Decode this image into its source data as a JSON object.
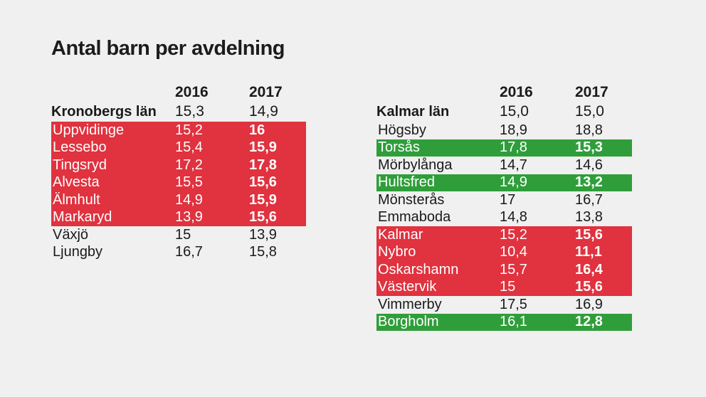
{
  "title": "Antal barn per avdelning",
  "colors": {
    "increase": "#e0323f",
    "decrease": "#2f9e3a",
    "background": "#f0f0f0"
  },
  "chart_data": [
    {
      "type": "table",
      "columns": [
        "2016",
        "2017"
      ],
      "region": {
        "name": "Kronobergs län",
        "v2016": "15,3",
        "v2017": "14,9"
      },
      "rows": [
        {
          "name": "Uppvidinge",
          "v2016": "15,2",
          "v2017": "16",
          "highlight": "red"
        },
        {
          "name": "Lessebo",
          "v2016": "15,4",
          "v2017": "15,9",
          "highlight": "red"
        },
        {
          "name": "Tingsryd",
          "v2016": "17,2",
          "v2017": "17,8",
          "highlight": "red"
        },
        {
          "name": "Alvesta",
          "v2016": "15,5",
          "v2017": "15,6",
          "highlight": "red"
        },
        {
          "name": "Älmhult",
          "v2016": "14,9",
          "v2017": "15,9",
          "highlight": "red"
        },
        {
          "name": "Markaryd",
          "v2016": "13,9",
          "v2017": "15,6",
          "highlight": "red"
        },
        {
          "name": "Växjö",
          "v2016": "15",
          "v2017": "13,9",
          "highlight": "none"
        },
        {
          "name": "Ljungby",
          "v2016": "16,7",
          "v2017": "15,8",
          "highlight": "none"
        }
      ]
    },
    {
      "type": "table",
      "columns": [
        "2016",
        "2017"
      ],
      "region": {
        "name": "Kalmar län",
        "v2016": "15,0",
        "v2017": "15,0"
      },
      "rows": [
        {
          "name": "Högsby",
          "v2016": "18,9",
          "v2017": "18,8",
          "highlight": "none"
        },
        {
          "name": "Torsås",
          "v2016": "17,8",
          "v2017": "15,3",
          "highlight": "green"
        },
        {
          "name": "Mörbylånga",
          "v2016": "14,7",
          "v2017": "14,6",
          "highlight": "none"
        },
        {
          "name": "Hultsfred",
          "v2016": "14,9",
          "v2017": "13,2",
          "highlight": "green"
        },
        {
          "name": "Mönsterås",
          "v2016": "17",
          "v2017": "16,7",
          "highlight": "none"
        },
        {
          "name": "Emmaboda",
          "v2016": "14,8",
          "v2017": "13,8",
          "highlight": "none"
        },
        {
          "name": "Kalmar",
          "v2016": "15,2",
          "v2017": "15,6",
          "highlight": "red"
        },
        {
          "name": "Nybro",
          "v2016": "10,4",
          "v2017": "11,1",
          "highlight": "red"
        },
        {
          "name": "Oskarshamn",
          "v2016": "15,7",
          "v2017": "16,4",
          "highlight": "red"
        },
        {
          "name": "Västervik",
          "v2016": "15",
          "v2017": "15,6",
          "highlight": "red"
        },
        {
          "name": "Vimmerby",
          "v2016": "17,5",
          "v2017": "16,9",
          "highlight": "none"
        },
        {
          "name": "Borgholm",
          "v2016": "16,1",
          "v2017": "12,8",
          "highlight": "green"
        }
      ]
    }
  ]
}
